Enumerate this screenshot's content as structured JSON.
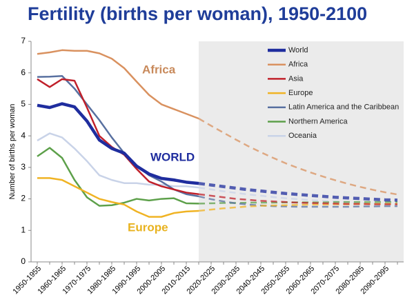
{
  "chart_data": {
    "type": "line",
    "title": "Fertility (births per woman), 1950-2100",
    "y_label": "Number of births per woman",
    "categories": [
      "1950-1955",
      null,
      "1960-1965",
      null,
      "1970-1975",
      null,
      "1980-1985",
      null,
      "1990-1995",
      null,
      "2000-2005",
      null,
      "2010-2015",
      null,
      "2020-2025",
      null,
      "2030-2035",
      null,
      "2040-2045",
      null,
      "2050-2055",
      null,
      "2060-2065",
      null,
      "2070-2075",
      null,
      "2080-2085",
      null,
      "2090-2095",
      null
    ],
    "projection_start": 13,
    "ylim": [
      0,
      7
    ],
    "yticks": [
      0,
      1,
      2,
      3,
      4,
      5,
      6,
      7
    ],
    "legend": "top-right",
    "series": [
      {
        "name": "World",
        "color": "#1f2d9e",
        "values": [
          4.97,
          4.9,
          5.02,
          4.92,
          4.47,
          3.87,
          3.6,
          3.45,
          3.04,
          2.79,
          2.65,
          2.6,
          2.53,
          2.49,
          2.44,
          2.39,
          2.34,
          2.29,
          2.25,
          2.21,
          2.17,
          2.14,
          2.11,
          2.08,
          2.05,
          2.03,
          2.01,
          1.99,
          1.97,
          1.96
        ]
      },
      {
        "name": "Africa",
        "color": "#d9915f",
        "values": [
          6.6,
          6.65,
          6.72,
          6.7,
          6.7,
          6.62,
          6.45,
          6.15,
          5.72,
          5.3,
          5.0,
          4.85,
          4.7,
          4.55,
          4.32,
          4.1,
          3.88,
          3.67,
          3.48,
          3.3,
          3.13,
          2.98,
          2.84,
          2.71,
          2.59,
          2.48,
          2.38,
          2.29,
          2.21,
          2.14
        ]
      },
      {
        "name": "Asia",
        "color": "#c0202a",
        "values": [
          5.8,
          5.55,
          5.8,
          5.75,
          4.9,
          4.0,
          3.65,
          3.4,
          2.95,
          2.55,
          2.4,
          2.3,
          2.2,
          2.15,
          2.1,
          2.05,
          2.0,
          1.97,
          1.94,
          1.92,
          1.9,
          1.88,
          1.87,
          1.86,
          1.85,
          1.84,
          1.84,
          1.83,
          1.83,
          1.83
        ]
      },
      {
        "name": "Europe",
        "color": "#f0b323",
        "values": [
          2.66,
          2.66,
          2.6,
          2.4,
          2.2,
          2.0,
          1.9,
          1.82,
          1.6,
          1.43,
          1.43,
          1.55,
          1.6,
          1.62,
          1.66,
          1.7,
          1.73,
          1.76,
          1.78,
          1.79,
          1.8,
          1.81,
          1.82,
          1.82,
          1.83,
          1.83,
          1.84,
          1.84,
          1.84,
          1.84
        ]
      },
      {
        "name": "Latin America and the Caribbean",
        "color": "#5870a0",
        "values": [
          5.87,
          5.88,
          5.9,
          5.5,
          5.0,
          4.5,
          3.95,
          3.45,
          3.05,
          2.75,
          2.55,
          2.3,
          2.15,
          2.08,
          1.99,
          1.92,
          1.86,
          1.82,
          1.79,
          1.77,
          1.76,
          1.75,
          1.75,
          1.75,
          1.75,
          1.75,
          1.76,
          1.76,
          1.77,
          1.77
        ]
      },
      {
        "name": "Northern America",
        "color": "#5da04a",
        "values": [
          3.35,
          3.62,
          3.3,
          2.6,
          2.05,
          1.78,
          1.8,
          1.88,
          2.0,
          1.95,
          2.0,
          2.02,
          1.86,
          1.85,
          1.86,
          1.87,
          1.87,
          1.88,
          1.88,
          1.88,
          1.89,
          1.89,
          1.89,
          1.89,
          1.9,
          1.9,
          1.9,
          1.9,
          1.9,
          1.9
        ]
      },
      {
        "name": "Oceania",
        "color": "#c9d3e8",
        "values": [
          3.85,
          4.08,
          3.95,
          3.6,
          3.2,
          2.75,
          2.6,
          2.5,
          2.5,
          2.45,
          2.45,
          2.4,
          2.4,
          2.36,
          2.3,
          2.24,
          2.19,
          2.14,
          2.1,
          2.06,
          2.02,
          1.99,
          1.96,
          1.94,
          1.92,
          1.9,
          1.88,
          1.86,
          1.84,
          1.83
        ]
      }
    ],
    "annotations": [
      {
        "text": "Africa",
        "color": "#c8895a"
      },
      {
        "text": "WORLD",
        "color": "#1f2d9e"
      },
      {
        "text": "Europe",
        "color": "#e8b21e"
      }
    ]
  }
}
